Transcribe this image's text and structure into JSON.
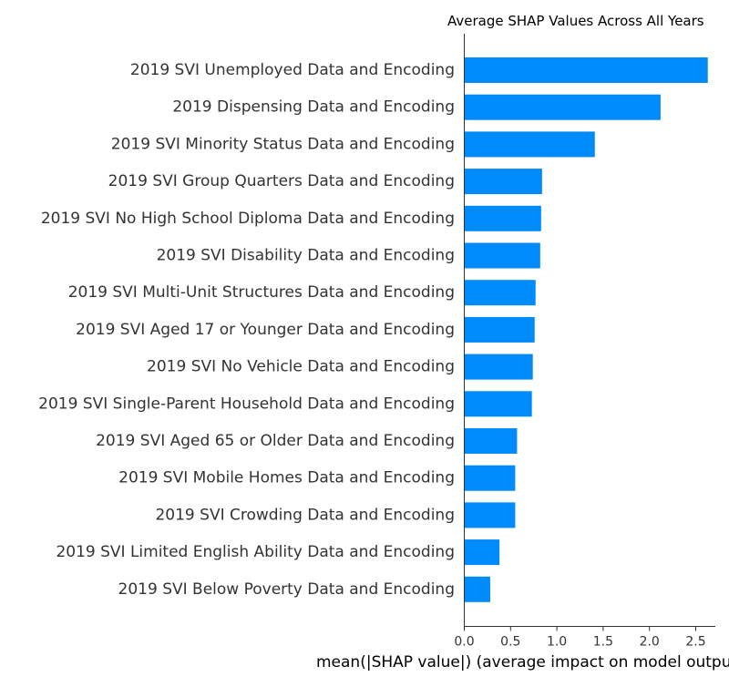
{
  "chart_data": {
    "type": "bar",
    "orientation": "horizontal",
    "title": "Average SHAP Values Across All Years",
    "xlabel": "mean(|SHAP value|) (average impact on model output magnitude)",
    "ylabel": "",
    "xlim": [
      0,
      2.75
    ],
    "xticks": [
      "0.0",
      "0.5",
      "1.0",
      "1.5",
      "2.0",
      "2.5"
    ],
    "grid": false,
    "bar_color": "#008bfb",
    "categories": [
      "2019 SVI Unemployed Data and Encoding",
      "2019 Dispensing Data and Encoding",
      "2019 SVI Minority Status Data and Encoding",
      "2019 SVI Group Quarters Data and Encoding",
      "2019 SVI No High School Diploma Data and Encoding",
      "2019 SVI Disability Data and Encoding",
      "2019 SVI Multi-Unit Structures Data and Encoding",
      "2019 SVI Aged 17 or Younger Data and Encoding",
      "2019 SVI No Vehicle Data and Encoding",
      "2019 SVI Single-Parent Household Data and Encoding",
      "2019 SVI Aged 65 or Older Data and Encoding",
      "2019 SVI Mobile Homes Data and Encoding",
      "2019 SVI Crowding Data and Encoding",
      "2019 SVI Limited English Ability Data and Encoding",
      "2019 SVI Below Poverty Data and Encoding"
    ],
    "values": [
      2.63,
      2.12,
      1.41,
      0.84,
      0.83,
      0.82,
      0.77,
      0.76,
      0.74,
      0.73,
      0.57,
      0.55,
      0.55,
      0.38,
      0.28
    ]
  }
}
